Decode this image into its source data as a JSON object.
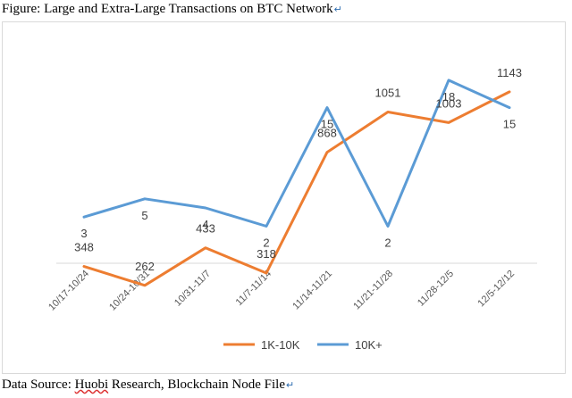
{
  "figure_title": "Figure: Large and Extra-Large Transactions on BTC Network",
  "source": {
    "prefix": "Data Source: ",
    "huobi": "Huobi",
    "rest": " Research, Blockchain Node File"
  },
  "return_mark": "↵",
  "chart_data": {
    "type": "line",
    "categories": [
      "10/17-10/24",
      "10/24-10/31",
      "10/31-11/7",
      "11/7-11/14",
      "11/14-11/21",
      "11/21-11/28",
      "11/28-12/5",
      "12/5-12/12"
    ],
    "series": [
      {
        "name": "1K-10K",
        "color": "#ED7D31",
        "values": [
          348,
          262,
          433,
          318,
          868,
          1051,
          1003,
          1143
        ],
        "labels": [
          "348",
          "262",
          "433",
          "318",
          "868",
          "1051",
          "1003",
          "1143"
        ]
      },
      {
        "name": "10K+",
        "color": "#5B9BD5",
        "values": [
          3,
          5,
          4,
          2,
          15,
          2,
          18,
          15
        ],
        "labels": [
          "3",
          "5",
          "4",
          "2",
          "15",
          "2",
          "18",
          "15"
        ]
      }
    ],
    "legend_position": "bottom",
    "grid": false
  }
}
